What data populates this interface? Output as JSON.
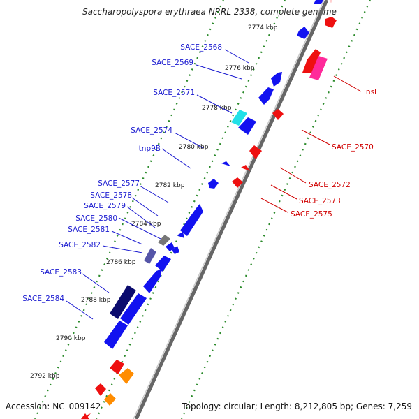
{
  "title": "Saccharopolyspora erythraea NRRL 2338, complete genome",
  "footer": {
    "accession": "Accession: NC_009142",
    "topology": "Topology: circular; Length: 8,212,805 bp; Genes: 7,259"
  },
  "ticks": [
    "2774 kbp",
    "2776 kbp",
    "2778 kbp",
    "2780 kbp",
    "2782 kbp",
    "2784 kbp",
    "2786 kbp",
    "2788 kbp",
    "2790 kbp",
    "2792 kbp"
  ],
  "left_labels": [
    "SACE_2568",
    "SACE_2569",
    "SACE_2571",
    "SACE_2574",
    "tnp9B",
    "SACE_2577",
    "SACE_2578",
    "SACE_2579",
    "SACE_2580",
    "SACE_2581",
    "SACE_2582",
    "SACE_2583",
    "SACE_2584"
  ],
  "right_labels": [
    "insI",
    "SACE_2570",
    "SACE_2572",
    "SACE_2573",
    "SACE_2575"
  ],
  "colors": {
    "blue": "#1212f0",
    "navy": "#0b0b6e",
    "cyan": "#22e0e8",
    "red": "#ee1010",
    "pink": "#ff2a9a",
    "orange": "#ff8c00",
    "gray": "#707070",
    "backbone": "#8a8a8a",
    "dots": "#2a8a2a",
    "label_left": "#1a1ad0",
    "label_right": "#d00000"
  }
}
